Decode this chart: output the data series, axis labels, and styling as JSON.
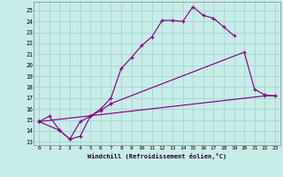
{
  "xlabel": "Windchill (Refroidissement éolien,°C)",
  "bg_color": "#c8ece8",
  "grid_color": "#a8d8d4",
  "line_color": "#880088",
  "xlim": [
    -0.5,
    23.5
  ],
  "ylim": [
    12.7,
    25.8
  ],
  "xticks": [
    0,
    1,
    2,
    3,
    4,
    5,
    6,
    7,
    8,
    9,
    10,
    11,
    12,
    13,
    14,
    15,
    16,
    17,
    18,
    19,
    20,
    21,
    22,
    23
  ],
  "yticks": [
    13,
    14,
    15,
    16,
    17,
    18,
    19,
    20,
    21,
    22,
    23,
    24,
    25
  ],
  "line1_x": [
    0,
    1,
    2,
    3,
    4,
    5,
    6,
    7,
    8,
    9,
    10,
    11,
    12,
    13,
    14,
    15,
    16,
    17,
    18,
    19
  ],
  "line1_y": [
    14.85,
    15.35,
    14.05,
    13.25,
    14.85,
    15.35,
    16.0,
    17.0,
    19.7,
    20.7,
    21.8,
    22.6,
    24.1,
    24.1,
    24.0,
    25.35,
    24.55,
    24.3,
    23.5,
    22.7
  ],
  "line2_x": [
    0,
    2,
    3,
    4,
    5,
    6,
    7,
    20,
    21,
    22,
    23
  ],
  "line2_y": [
    14.85,
    14.05,
    13.25,
    13.5,
    15.35,
    15.85,
    16.5,
    21.2,
    17.8,
    17.3,
    17.2
  ],
  "line2_break": 6,
  "line3_x": [
    0,
    22,
    23
  ],
  "line3_y": [
    14.85,
    17.2,
    17.2
  ]
}
